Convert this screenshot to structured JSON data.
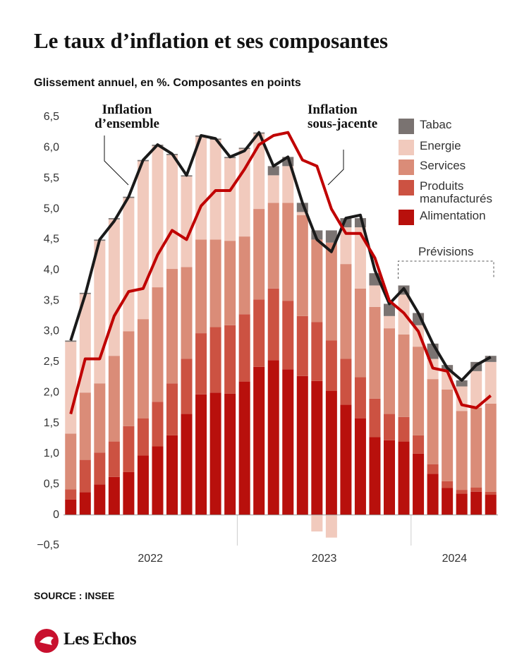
{
  "title": "Le taux d’inflation et ses composantes",
  "subtitle": "Glissement annuel, en %. Composantes en points",
  "source": "SOURCE : INSEE",
  "brand": "Les Echos",
  "chart_data": {
    "type": "bar",
    "stacked": true,
    "categories": [
      null,
      null,
      null,
      null,
      null,
      null,
      null,
      null,
      null,
      null,
      null,
      null,
      null,
      null,
      null,
      null,
      null,
      null,
      null,
      null,
      null,
      null,
      null,
      null,
      null,
      null,
      null,
      null,
      null,
      null
    ],
    "x_group_labels": [
      "2022",
      "2023",
      "2024"
    ],
    "x_group_sizes": [
      12,
      12,
      6
    ],
    "ylim": [
      -0.5,
      6.5
    ],
    "yticks": [
      {
        "value": -0.5,
        "label": "−0,5"
      },
      0,
      {
        "value": 0.5,
        "label": "0,5"
      },
      {
        "value": 1,
        "label": "1,0"
      },
      {
        "value": 1.5,
        "label": "1,5"
      },
      {
        "value": 2,
        "label": "2,0"
      },
      {
        "value": 2.5,
        "label": "2,5"
      },
      {
        "value": 3,
        "label": "3,0"
      },
      {
        "value": 3.5,
        "label": "3,5"
      },
      {
        "value": 4,
        "label": "4,0"
      },
      {
        "value": 4.5,
        "label": "4,5"
      },
      {
        "value": 5,
        "label": "5,0"
      },
      {
        "value": 5.5,
        "label": "5,5"
      },
      {
        "value": 6,
        "label": "6,0"
      },
      {
        "value": 6.5,
        "label": "6,5"
      }
    ],
    "forecast": {
      "label": "Prévisions",
      "from": 23
    },
    "series": [
      {
        "name": "Alimentation",
        "color": "#b8100c",
        "values": [
          0.25,
          0.37,
          0.5,
          0.62,
          0.7,
          0.97,
          1.12,
          1.3,
          1.65,
          1.97,
          2.0,
          1.98,
          2.18,
          2.42,
          2.53,
          2.38,
          2.27,
          2.19,
          2.03,
          1.8,
          1.58,
          1.27,
          1.22,
          1.2,
          1.0,
          0.67,
          0.44,
          0.35,
          0.38,
          0.33
        ]
      },
      {
        "name": "Produits manufacturés",
        "color": "#cc5242",
        "values": [
          0.17,
          0.53,
          0.52,
          0.58,
          0.75,
          0.61,
          0.73,
          0.85,
          0.9,
          1.0,
          1.07,
          1.12,
          1.1,
          1.1,
          1.17,
          1.12,
          0.98,
          0.96,
          0.82,
          0.75,
          0.67,
          0.63,
          0.43,
          0.4,
          0.3,
          0.16,
          0.11,
          0.06,
          0.07,
          0.05
        ]
      },
      {
        "name": "Services",
        "color": "#da8c78",
        "values": [
          0.91,
          1.1,
          1.13,
          1.4,
          1.55,
          1.62,
          1.87,
          1.87,
          1.5,
          1.53,
          1.43,
          1.38,
          1.27,
          1.48,
          1.4,
          1.6,
          1.65,
          1.35,
          1.6,
          1.55,
          1.45,
          1.5,
          1.4,
          1.35,
          1.45,
          1.39,
          1.5,
          1.29,
          1.3,
          1.44
        ]
      },
      {
        "name": "Energie",
        "color": "#f1cabd",
        "values": [
          1.5,
          1.61,
          2.33,
          2.23,
          2.18,
          2.58,
          2.31,
          1.86,
          1.48,
          1.68,
          1.63,
          1.35,
          1.43,
          1.23,
          0.45,
          0.6,
          0.05,
          -0.27,
          -0.37,
          0.6,
          1.0,
          0.35,
          0.2,
          0.65,
          0.35,
          0.33,
          0.3,
          0.4,
          0.6,
          0.68
        ]
      },
      {
        "name": "Tabac",
        "color": "#7a7371",
        "values": [
          0.02,
          0.02,
          0.02,
          0.02,
          0.02,
          0.02,
          0.02,
          0.02,
          0.02,
          0.02,
          0.02,
          0.02,
          0.02,
          0.02,
          0.15,
          0.15,
          0.15,
          0.15,
          0.2,
          0.15,
          0.15,
          0.2,
          0.2,
          0.15,
          0.2,
          0.25,
          0.1,
          0.1,
          0.15,
          0.1
        ]
      },
      {
        "name": "Inflation d’ensemble",
        "type": "line",
        "color": "#1a1a1a",
        "values": [
          2.85,
          3.6,
          4.5,
          4.8,
          5.2,
          5.8,
          6.05,
          5.9,
          5.55,
          6.2,
          6.15,
          5.85,
          5.95,
          6.25,
          5.7,
          5.85,
          5.1,
          4.5,
          4.3,
          4.85,
          4.9,
          4.0,
          3.45,
          3.7,
          3.3,
          2.8,
          2.4,
          2.2,
          2.45,
          2.58
        ]
      },
      {
        "name": "Inflation sous-jacente",
        "type": "line",
        "color": "#c00000",
        "values": [
          1.65,
          2.55,
          2.55,
          3.25,
          3.65,
          3.7,
          4.25,
          4.65,
          4.5,
          5.05,
          5.3,
          5.3,
          5.65,
          6.05,
          6.2,
          6.25,
          5.8,
          5.7,
          5.0,
          4.6,
          4.6,
          4.2,
          3.5,
          3.3,
          3.0,
          2.4,
          2.35,
          1.8,
          1.75,
          1.95
        ]
      }
    ]
  }
}
